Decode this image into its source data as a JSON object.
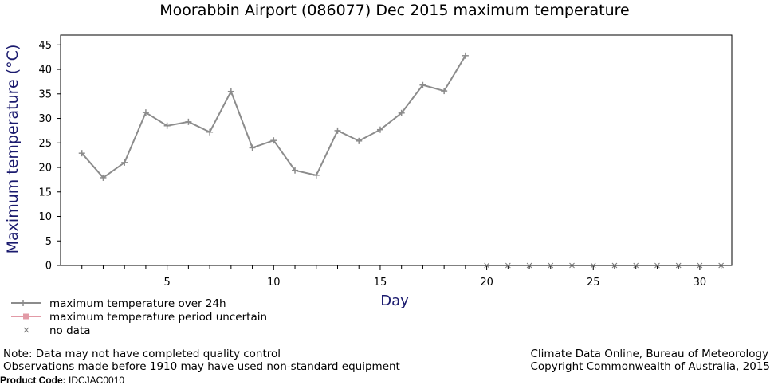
{
  "chart_data": {
    "type": "line",
    "title": "Moorabbin Airport (086077) Dec 2015 maximum temperature",
    "xlabel": "Day",
    "ylabel": "Maximum temperature (°C)",
    "xlim": [
      0,
      31.5
    ],
    "ylim": [
      0,
      47
    ],
    "x_ticks": [
      5,
      10,
      15,
      20,
      25,
      30
    ],
    "y_ticks": [
      0,
      5,
      10,
      15,
      20,
      25,
      30,
      35,
      40,
      45
    ],
    "grid": false,
    "series": [
      {
        "name": "maximum temperature over 24h",
        "color": "#8c8c8c",
        "x": [
          1,
          2,
          3,
          4,
          5,
          6,
          7,
          8,
          9,
          10,
          11,
          12,
          13,
          14,
          15,
          16,
          17,
          18,
          19
        ],
        "y": [
          22.9,
          17.9,
          21.0,
          31.2,
          28.5,
          29.3,
          27.2,
          35.5,
          24.0,
          25.5,
          19.4,
          18.4,
          27.5,
          25.4,
          27.7,
          31.1,
          36.8,
          35.6,
          42.8
        ]
      },
      {
        "name": "maximum temperature period uncertain",
        "color": "#e29aa6",
        "x": [],
        "y": []
      },
      {
        "name": "no data",
        "color": "#7a7a7a",
        "x": [
          20,
          21,
          22,
          23,
          24,
          25,
          26,
          27,
          28,
          29,
          30,
          31
        ],
        "y": [
          0,
          0,
          0,
          0,
          0,
          0,
          0,
          0,
          0,
          0,
          0,
          0
        ]
      }
    ],
    "legend_position": "bottom-left"
  },
  "footer": {
    "note_line1": "Note: Data may not have completed quality control",
    "note_line2": "Observations made before 1910 may have used non-standard equipment",
    "credit_line1": "Climate Data Online, Bureau of Meteorology",
    "credit_line2": "Copyright Commonwealth of Australia, 2015",
    "product_label": "Product Code:",
    "product_code": "IDCJAC0010"
  }
}
